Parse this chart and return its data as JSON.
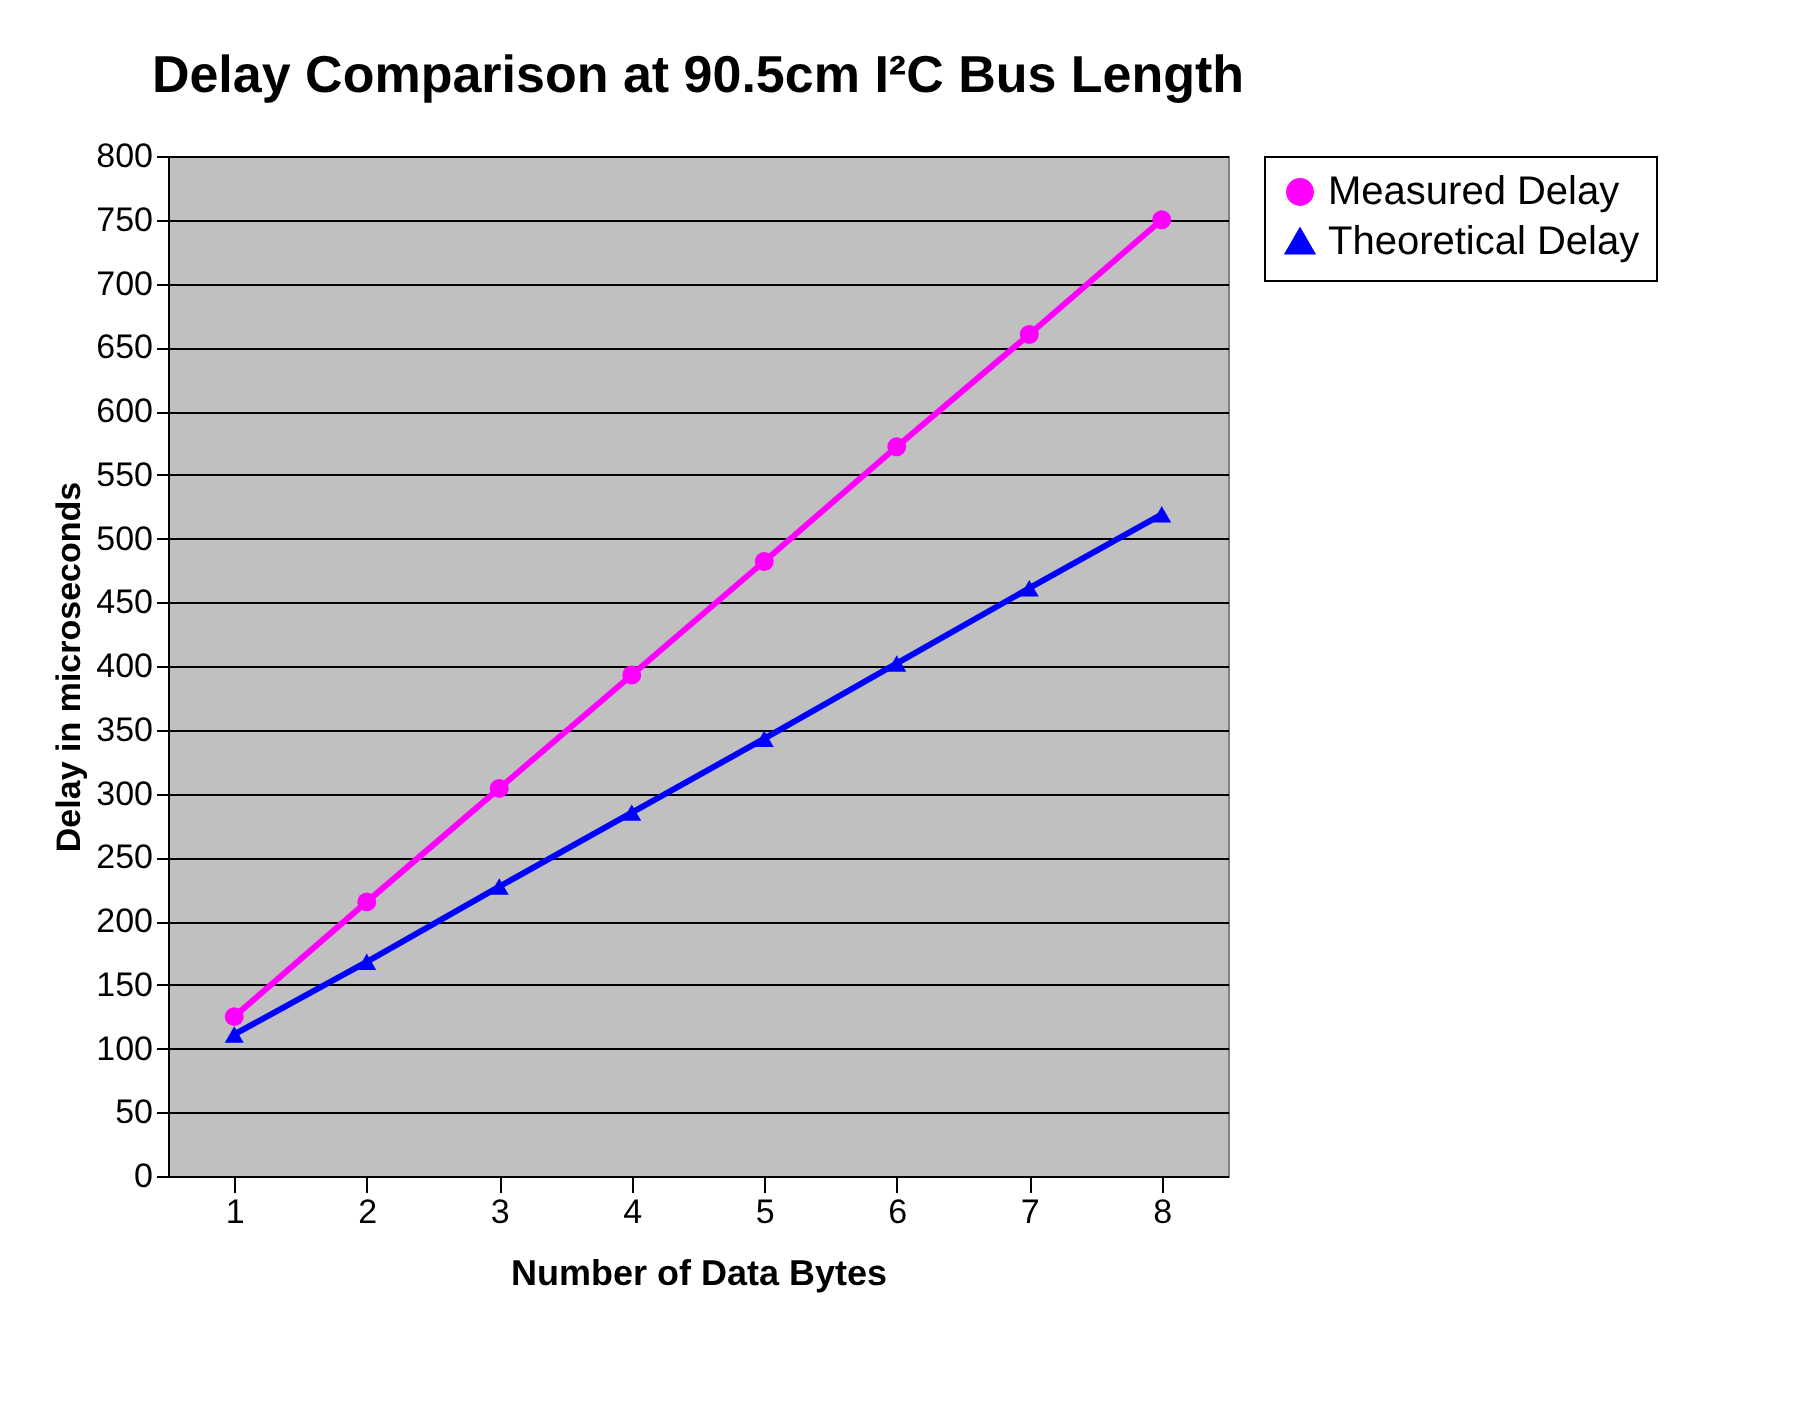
{
  "chart_data": {
    "type": "line",
    "title": "Delay Comparison at 90.5cm I²C Bus Length",
    "xlabel": "Number of Data Bytes",
    "ylabel": "Delay in microseconds",
    "categories": [
      "1",
      "2",
      "3",
      "4",
      "5",
      "6",
      "7",
      "8"
    ],
    "series": [
      {
        "name": "Measured Delay",
        "color": "#ff00ff",
        "marker": "circle",
        "values": [
          125,
          215,
          304,
          393,
          482,
          572,
          660,
          750
        ]
      },
      {
        "name": "Theoretical Delay",
        "color": "#0000ff",
        "marker": "triangle",
        "values": [
          111,
          168,
          227,
          285,
          343,
          402,
          461,
          519
        ]
      }
    ],
    "ylim": [
      0,
      800
    ],
    "yticks": [
      0,
      50,
      100,
      150,
      200,
      250,
      300,
      350,
      400,
      450,
      500,
      550,
      600,
      650,
      700,
      750,
      800
    ],
    "grid": "y",
    "legend": "right",
    "line_style": "solid"
  }
}
